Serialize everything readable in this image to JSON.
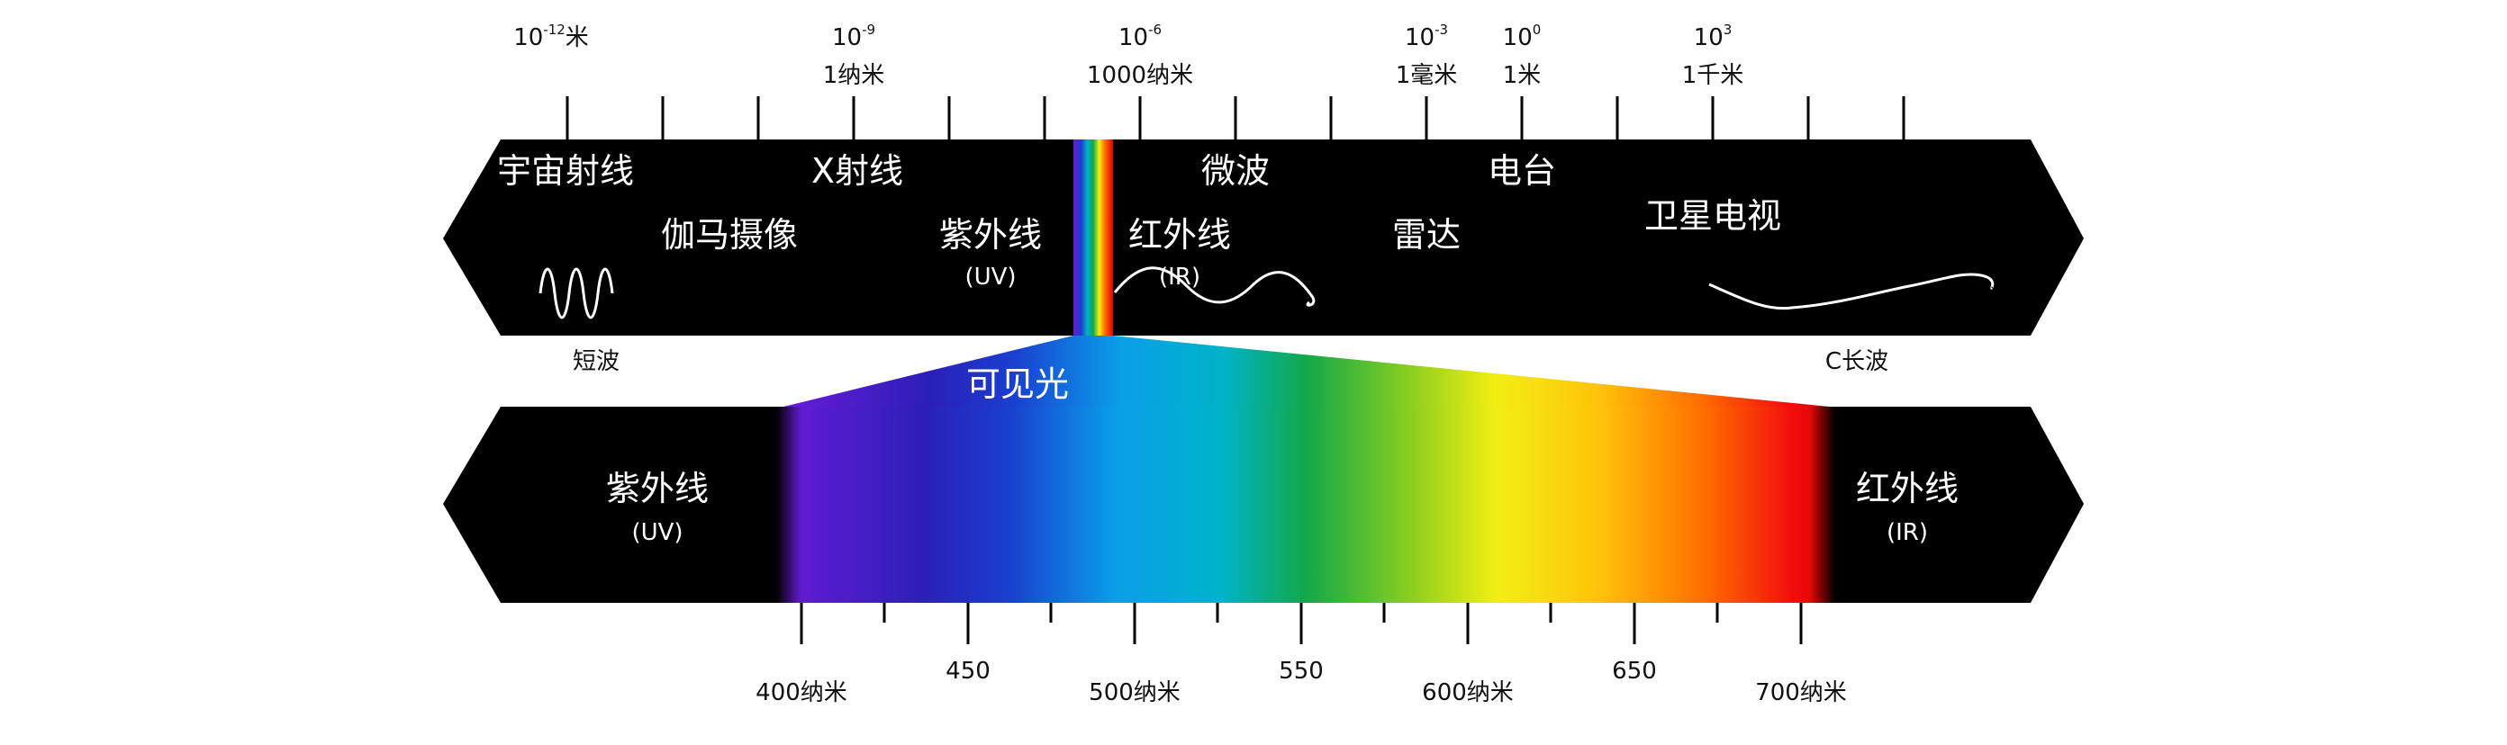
{
  "top_scale": {
    "ticks": [
      {
        "exp": "-12",
        "unit_inline": "米",
        "label": ""
      },
      {
        "exp": "-9",
        "unit_inline": "",
        "label": "1纳米"
      },
      {
        "exp": "-6",
        "unit_inline": "",
        "label": "1000纳米"
      },
      {
        "exp": "-3",
        "unit_inline": "",
        "label": "1毫米"
      },
      {
        "exp": "0",
        "unit_inline": "",
        "label": "1米"
      },
      {
        "exp": "3",
        "unit_inline": "",
        "label": "1千米"
      }
    ]
  },
  "spectrum_labels": {
    "cosmic": "宇宙射线",
    "gamma": "伽马摄像",
    "xray": "X射线",
    "uv": "紫外线",
    "uv_sub": "(UV)",
    "ir": "红外线",
    "ir_sub": "(IR)",
    "microwave": "微波",
    "radar": "雷达",
    "radio": "电台",
    "satellite_tv": "卫星电视"
  },
  "wave_labels": {
    "short": "短波",
    "long": "C长波"
  },
  "visible_label": "可见光",
  "visible_band": {
    "left": "紫外线",
    "left_sub": "(UV)",
    "right": "红外线",
    "right_sub": "(IR)"
  },
  "nm_scale": {
    "major": [
      {
        "value": "400纳米",
        "row": "low"
      },
      {
        "value": "450",
        "row": "high"
      },
      {
        "value": "500纳米",
        "row": "low"
      },
      {
        "value": "550",
        "row": "high"
      },
      {
        "value": "600纳米",
        "row": "low"
      },
      {
        "value": "650",
        "row": "high"
      },
      {
        "value": "700纳米",
        "row": "low"
      }
    ]
  },
  "colors": {
    "band": "#000000",
    "text_on_band": "#ffffff",
    "text_on_white": "#111111"
  }
}
